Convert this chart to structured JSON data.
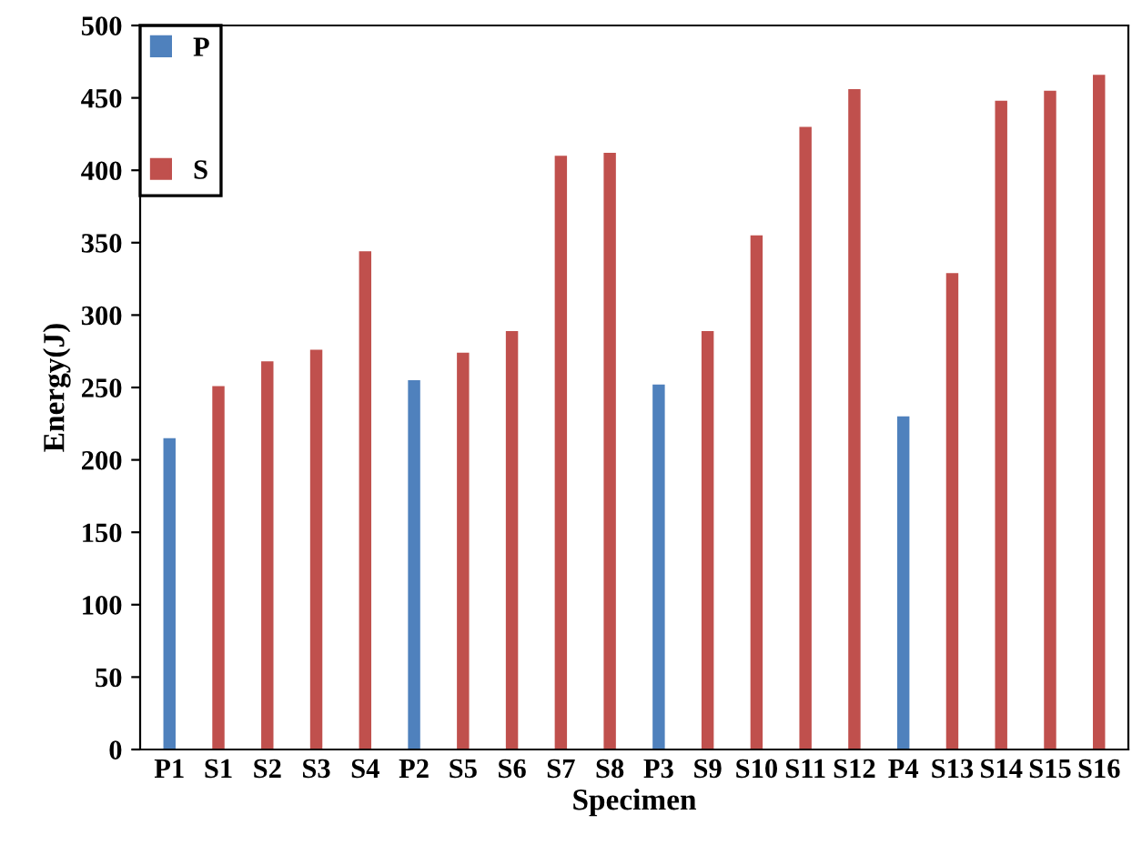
{
  "chart_data": {
    "type": "bar",
    "xlabel": "Specimen",
    "ylabel": "Energy(J)",
    "categories": [
      "P1",
      "S1",
      "S2",
      "S3",
      "S4",
      "P2",
      "S5",
      "S6",
      "S7",
      "S8",
      "P3",
      "S9",
      "S10",
      "S11",
      "S12",
      "P4",
      "S13",
      "S14",
      "S15",
      "S16"
    ],
    "series": [
      {
        "name": "P",
        "color": "#4f81bd",
        "values": [
          215,
          null,
          null,
          null,
          null,
          255,
          null,
          null,
          null,
          null,
          252,
          null,
          null,
          null,
          null,
          230,
          null,
          null,
          null,
          null
        ]
      },
      {
        "name": "S",
        "color": "#c0504d",
        "values": [
          null,
          251,
          268,
          276,
          344,
          null,
          274,
          289,
          410,
          412,
          null,
          289,
          355,
          430,
          456,
          null,
          329,
          448,
          455,
          466
        ]
      }
    ],
    "ylim": [
      0,
      500
    ],
    "yticks": [
      0,
      50,
      100,
      150,
      200,
      250,
      300,
      350,
      400,
      450,
      500
    ],
    "grid": false,
    "legend": "top left"
  }
}
